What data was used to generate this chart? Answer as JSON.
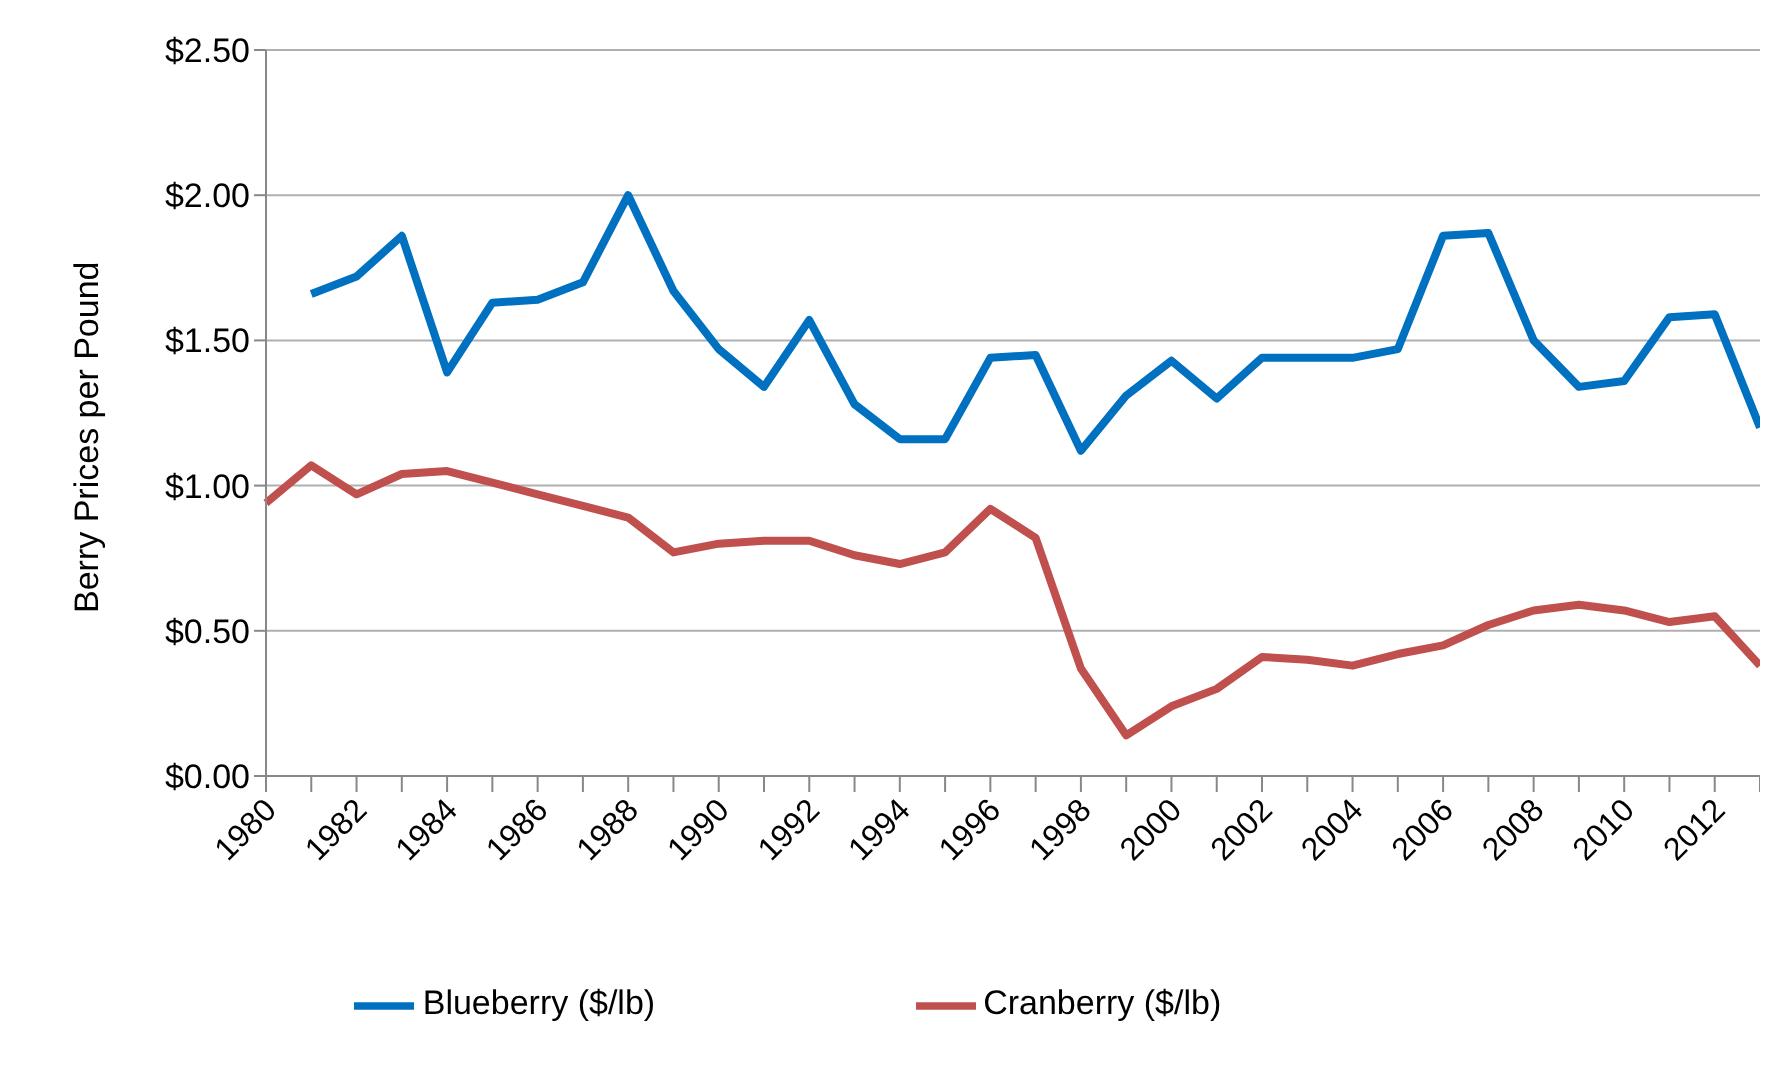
{
  "chart_data": {
    "type": "line",
    "ylabel": "Berry Prices per Pound",
    "categories": [
      "1980",
      null,
      "1982",
      null,
      "1984",
      null,
      "1986",
      null,
      "1988",
      null,
      "1990",
      null,
      "1992",
      null,
      "1994",
      null,
      "1996",
      null,
      "1998",
      null,
      "2000",
      null,
      "2002",
      null,
      "2004",
      null,
      "2006",
      null,
      "2008",
      null,
      "2010",
      null,
      "2012",
      null
    ],
    "series": [
      {
        "name": "Blueberry ($/lb)",
        "color": "#0070c0",
        "values": [
          null,
          1.66,
          1.72,
          1.86,
          1.39,
          1.63,
          1.64,
          1.7,
          2.0,
          1.67,
          1.47,
          1.34,
          1.57,
          1.28,
          1.16,
          1.16,
          1.44,
          1.45,
          1.12,
          1.31,
          1.43,
          1.3,
          1.44,
          1.44,
          1.44,
          1.47,
          1.86,
          1.87,
          1.5,
          1.34,
          1.36,
          1.58,
          1.59,
          1.2
        ]
      },
      {
        "name": "Cranberry ($/lb)",
        "color": "#c0504d",
        "values": [
          0.94,
          1.07,
          0.97,
          1.04,
          1.05,
          1.01,
          0.97,
          0.93,
          0.89,
          0.77,
          0.8,
          0.81,
          0.81,
          0.76,
          0.73,
          0.77,
          0.92,
          0.82,
          0.37,
          0.14,
          0.24,
          0.3,
          0.41,
          0.4,
          0.38,
          0.42,
          0.45,
          0.52,
          0.57,
          0.59,
          0.57,
          0.53,
          0.55,
          0.38
        ]
      }
    ],
    "ylim": [
      0,
      2.5
    ],
    "yticks": [
      {
        "value": 0,
        "label": "$0.00"
      },
      {
        "value": 0.5,
        "label": "$0.50"
      },
      {
        "value": 1,
        "label": "$1.00"
      },
      {
        "value": 1.5,
        "label": "$1.50"
      },
      {
        "value": 2,
        "label": "$2.00"
      },
      {
        "value": 2.5,
        "label": "$2.50"
      }
    ],
    "grid": "y",
    "legend": "bottom",
    "marker": "none",
    "line_style": "solid"
  }
}
